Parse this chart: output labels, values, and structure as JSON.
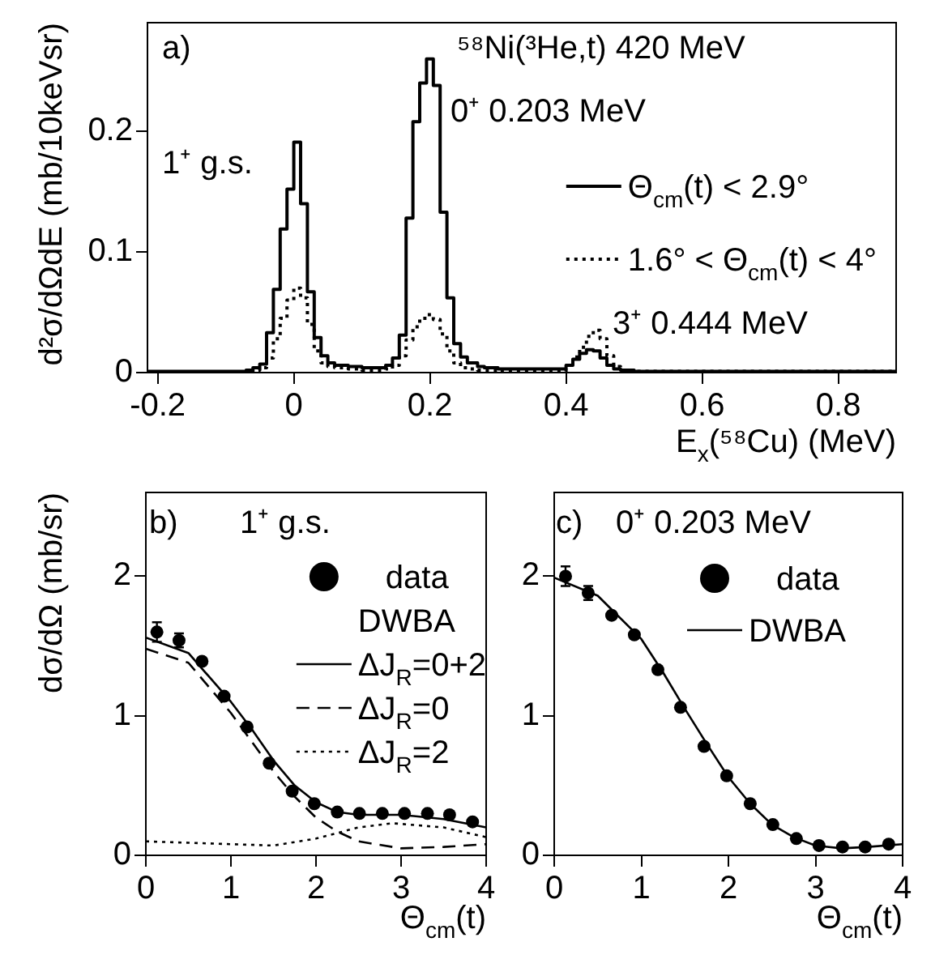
{
  "chart_data": [
    {
      "type": "step",
      "xlabel": "E$_{x}$(⁵⁸Cu) (MeV)",
      "ylabel": "d²σ/dΩdE (mb/10keVsr)",
      "xlim": [
        -0.215,
        0.885
      ],
      "ylim": [
        0,
        0.29
      ],
      "xticks": [
        -0.2,
        0,
        0.2,
        0.4,
        0.6,
        0.8
      ],
      "yticks": [
        0,
        0.1,
        0.2
      ],
      "legend": "right",
      "annotations": [
        "a)",
        "⁵⁸Ni(³He,t) 420 MeV",
        "1⁺ g.s.",
        "0⁺ 0.203 MeV",
        "3⁺ 0.444 MeV"
      ],
      "x": [
        -0.215,
        -0.07,
        -0.06,
        -0.05,
        -0.04,
        -0.03,
        -0.02,
        -0.01,
        0,
        0.01,
        0.02,
        0.03,
        0.04,
        0.05,
        0.06,
        0.08,
        0.1,
        0.135,
        0.145,
        0.155,
        0.165,
        0.175,
        0.185,
        0.195,
        0.205,
        0.215,
        0.225,
        0.235,
        0.245,
        0.255,
        0.27,
        0.28,
        0.3,
        0.35,
        0.4,
        0.41,
        0.42,
        0.43,
        0.44,
        0.45,
        0.46,
        0.47,
        0.48,
        0.5,
        0.885
      ],
      "series": [
        {
          "name": "Θ$_{cm}$(t) < 2.9°",
          "color": "#000000",
          "line_style": "solid",
          "values": [
            0.001,
            0.002,
            0.004,
            0.007,
            0.033,
            0.069,
            0.119,
            0.152,
            0.191,
            0.14,
            0.067,
            0.029,
            0.014,
            0.008,
            0.006,
            0.005,
            0.004,
            0.006,
            0.012,
            0.031,
            0.128,
            0.208,
            0.24,
            0.26,
            0.238,
            0.133,
            0.062,
            0.024,
            0.013,
            0.008,
            0.005,
            0.004,
            0.003,
            0.003,
            0.006,
            0.011,
            0.016,
            0.019,
            0.018,
            0.012,
            0.006,
            0.003,
            0.002,
            0.001,
            0.001
          ]
        },
        {
          "name": "1.6° < Θ$_{cm}$(t) < 4°",
          "color": "#000000",
          "line_style": "dotted",
          "values": [
            0,
            0.001,
            0.002,
            0.004,
            0.012,
            0.028,
            0.045,
            0.06,
            0.07,
            0.062,
            0.04,
            0.018,
            0.008,
            0.005,
            0.004,
            0.003,
            0.002,
            0.003,
            0.006,
            0.014,
            0.027,
            0.038,
            0.045,
            0.048,
            0.044,
            0.032,
            0.018,
            0.008,
            0.004,
            0.003,
            0.002,
            0.002,
            0.001,
            0.001,
            0.006,
            0.013,
            0.021,
            0.03,
            0.035,
            0.028,
            0.014,
            0.005,
            0.002,
            0.001,
            0.001
          ]
        }
      ]
    },
    {
      "type": "line",
      "xlabel": "Θ$_{cm}$(t)",
      "ylabel": "dσ/dΩ (mb/sr)",
      "xlim": [
        0,
        4
      ],
      "ylim": [
        0,
        2.6
      ],
      "xticks": [
        0,
        1,
        2,
        3,
        4
      ],
      "yticks": [
        0,
        1,
        2
      ],
      "legend": "top right",
      "legend_title": "DWBA",
      "annotations": [
        "b)",
        "1⁺ g.s."
      ],
      "series": [
        {
          "name": "data",
          "type": "scatter",
          "marker": "circle",
          "color": "#000000",
          "x": [
            0.13,
            0.39,
            0.66,
            0.92,
            1.19,
            1.45,
            1.72,
            1.98,
            2.25,
            2.51,
            2.78,
            3.04,
            3.31,
            3.57,
            3.84
          ],
          "values": [
            1.6,
            1.54,
            1.39,
            1.14,
            0.92,
            0.66,
            0.46,
            0.37,
            0.31,
            0.3,
            0.3,
            0.3,
            0.3,
            0.29,
            0.24
          ],
          "errors": [
            0.07,
            0.05,
            null,
            null,
            null,
            null,
            null,
            null,
            null,
            null,
            null,
            null,
            null,
            null,
            null
          ]
        },
        {
          "name": "ΔJ$_{R}$=0+2",
          "color": "#000000",
          "line_style": "solid",
          "x": [
            0,
            0.5,
            1,
            1.25,
            1.5,
            1.75,
            2,
            2.25,
            2.5,
            3,
            3.5,
            4
          ],
          "values": [
            1.56,
            1.45,
            1.1,
            0.9,
            0.68,
            0.5,
            0.38,
            0.31,
            0.29,
            0.29,
            0.26,
            0.2
          ]
        },
        {
          "name": "ΔJ$_{R}$=0",
          "color": "#000000",
          "line_style": "dashed",
          "x": [
            0,
            0.5,
            1,
            1.25,
            1.5,
            1.75,
            2,
            2.25,
            2.5,
            3,
            3.5,
            4
          ],
          "values": [
            1.48,
            1.38,
            1.02,
            0.81,
            0.6,
            0.42,
            0.27,
            0.17,
            0.1,
            0.05,
            0.06,
            0.08
          ]
        },
        {
          "name": "ΔJ$_{R}$=2",
          "color": "#000000",
          "line_style": "dotted",
          "x": [
            0,
            0.5,
            1,
            1.5,
            2,
            2.5,
            2.9,
            3.5,
            4
          ],
          "values": [
            0.1,
            0.09,
            0.08,
            0.07,
            0.12,
            0.2,
            0.23,
            0.2,
            0.13
          ]
        }
      ]
    },
    {
      "type": "line",
      "xlabel": "Θ$_{cm}$(t)",
      "xlim": [
        0,
        4
      ],
      "ylim": [
        0,
        2.6
      ],
      "xticks": [
        0,
        1,
        2,
        3,
        4
      ],
      "yticks": [
        0,
        1,
        2
      ],
      "legend": "top right",
      "annotations": [
        "c)",
        "0⁺ 0.203 MeV"
      ],
      "series": [
        {
          "name": "data",
          "type": "scatter",
          "marker": "circle",
          "color": "#000000",
          "x": [
            0.13,
            0.39,
            0.66,
            0.92,
            1.19,
            1.45,
            1.72,
            1.98,
            2.25,
            2.51,
            2.78,
            3.04,
            3.31,
            3.57,
            3.84
          ],
          "values": [
            2.0,
            1.88,
            1.72,
            1.58,
            1.33,
            1.06,
            0.78,
            0.57,
            0.37,
            0.22,
            0.12,
            0.07,
            0.06,
            0.06,
            0.08
          ],
          "errors": [
            0.07,
            0.05,
            null,
            null,
            null,
            null,
            null,
            null,
            null,
            null,
            null,
            null,
            null,
            null,
            null
          ]
        },
        {
          "name": "DWBA",
          "color": "#000000",
          "line_style": "solid",
          "x": [
            0,
            0.5,
            1,
            1.25,
            1.5,
            1.75,
            2,
            2.25,
            2.5,
            2.75,
            3,
            3.3,
            3.6,
            4
          ],
          "values": [
            1.99,
            1.86,
            1.55,
            1.31,
            1.05,
            0.8,
            0.56,
            0.37,
            0.22,
            0.13,
            0.07,
            0.05,
            0.06,
            0.08
          ]
        }
      ]
    }
  ]
}
